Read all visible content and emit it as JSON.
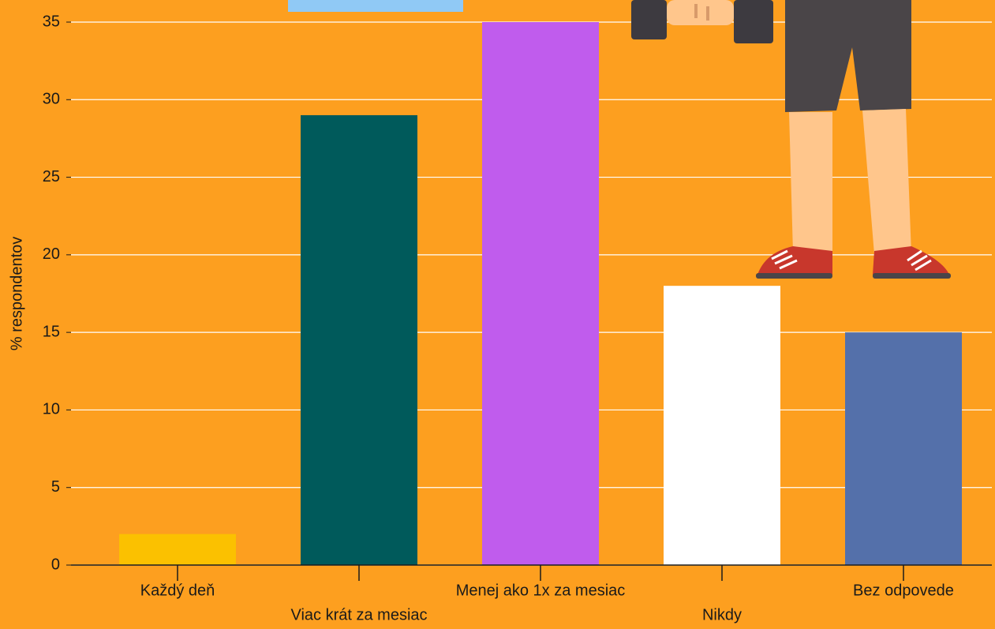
{
  "chart_data": {
    "type": "bar",
    "y_label": "% respondentov",
    "categories": [
      "Každý deň",
      "Viac krát za mesiac",
      "Menej ako 1x za mesiac",
      "Nikdy",
      "Bez odpovede"
    ],
    "values": [
      2,
      29,
      35,
      18,
      15
    ],
    "colors": [
      "#fbc100",
      "#005a5b",
      "#c05ced",
      "#ffffff",
      "#5470aa"
    ],
    "ylim": [
      0,
      35
    ],
    "yticks": [
      0,
      5,
      10,
      15,
      20,
      25,
      30,
      35
    ],
    "grid": true
  }
}
